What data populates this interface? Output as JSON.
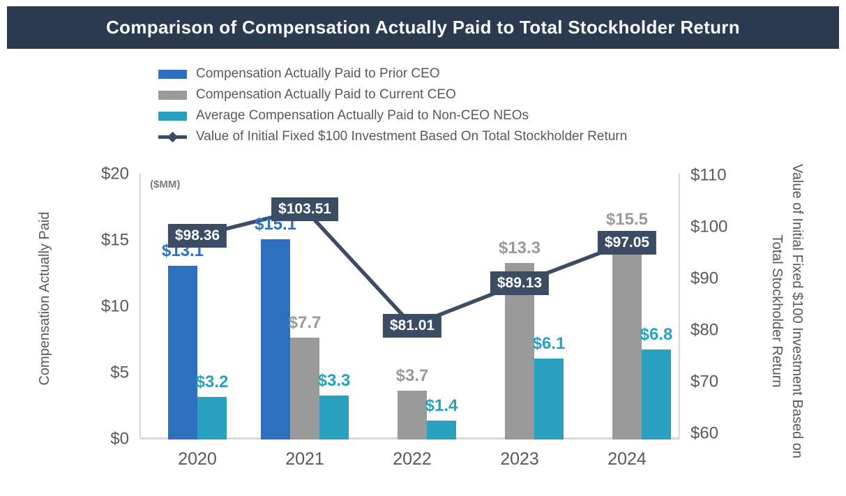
{
  "title": "Comparison of Compensation Actually Paid to Total Stockholder Return",
  "colors": {
    "title_bar_bg": "#2c3a50",
    "title_text": "#f7f9fb",
    "prior_ceo_blue": "#2e70c0",
    "current_ceo_gray": "#9a9a9a",
    "neo_teal": "#2aa0c0",
    "line_navy": "#3c4c65",
    "axis_text_gray": "#595959"
  },
  "legend": {
    "items": [
      {
        "label": "Compensation Actually Paid to Prior CEO",
        "marker": "bar-swatch",
        "color": "#2e70c0"
      },
      {
        "label": "Compensation Actually Paid to Current CEO",
        "marker": "bar-swatch",
        "color": "#9a9a9a"
      },
      {
        "label": "Average Compensation Actually Paid to Non-CEO NEOs",
        "marker": "bar-swatch",
        "color": "#2aa0c0"
      },
      {
        "label": "Value of Initial Fixed $100 Investment Based On Total Stockholder Return",
        "marker": "line-diamond",
        "color": "#3c4c65"
      }
    ]
  },
  "chart_data": {
    "type": "combo_bar_line",
    "categories": [
      "2020",
      "2021",
      "2022",
      "2023",
      "2024"
    ],
    "series": [
      {
        "name": "Compensation Actually Paid to Prior CEO",
        "type": "bar",
        "color": "#2e70c0",
        "values": [
          13.1,
          15.1,
          null,
          null,
          null
        ],
        "labels": [
          "$13.1",
          "$15.1",
          null,
          null,
          null
        ]
      },
      {
        "name": "Compensation Actually Paid to Current CEO",
        "type": "bar",
        "color": "#9a9a9a",
        "values": [
          null,
          7.7,
          3.7,
          13.3,
          15.5
        ],
        "labels": [
          null,
          "$7.7",
          "$3.7",
          "$13.3",
          "$15.5"
        ]
      },
      {
        "name": "Average Compensation Actually Paid to Non-CEO NEOs",
        "type": "bar",
        "color": "#2aa0c0",
        "values": [
          3.2,
          3.3,
          1.4,
          6.1,
          6.8
        ],
        "labels": [
          "$3.2",
          "$3.3",
          "$1.4",
          "$6.1",
          "$6.8"
        ]
      },
      {
        "name": "Value of Initial Fixed $100 Investment Based On Total Stockholder Return",
        "type": "line",
        "color": "#3c4c65",
        "values": [
          98.36,
          103.51,
          81.01,
          89.13,
          97.05
        ],
        "labels": [
          "$98.36",
          "$103.51",
          "$81.01",
          "$89.13",
          "$97.05"
        ]
      }
    ],
    "left_axis": {
      "label": "Compensation Actually Paid",
      "unit_note": "($MM)",
      "ticks": [
        "$20",
        "$15",
        "$10",
        "$5",
        "$0"
      ],
      "tick_values": [
        20,
        15,
        10,
        5,
        0
      ],
      "min": 0,
      "max": 20
    },
    "right_axis": {
      "label_line1": "Value of Initial Fixed $100 Investment Based on",
      "label_line2": "Total Stockholder Return",
      "ticks": [
        "$110",
        "$100",
        "$90",
        "$80",
        "$70",
        "$60"
      ],
      "tick_values": [
        110,
        100,
        90,
        80,
        70,
        60
      ],
      "min": 60,
      "max": 110
    },
    "legend_position": "top-left",
    "grid": false
  }
}
